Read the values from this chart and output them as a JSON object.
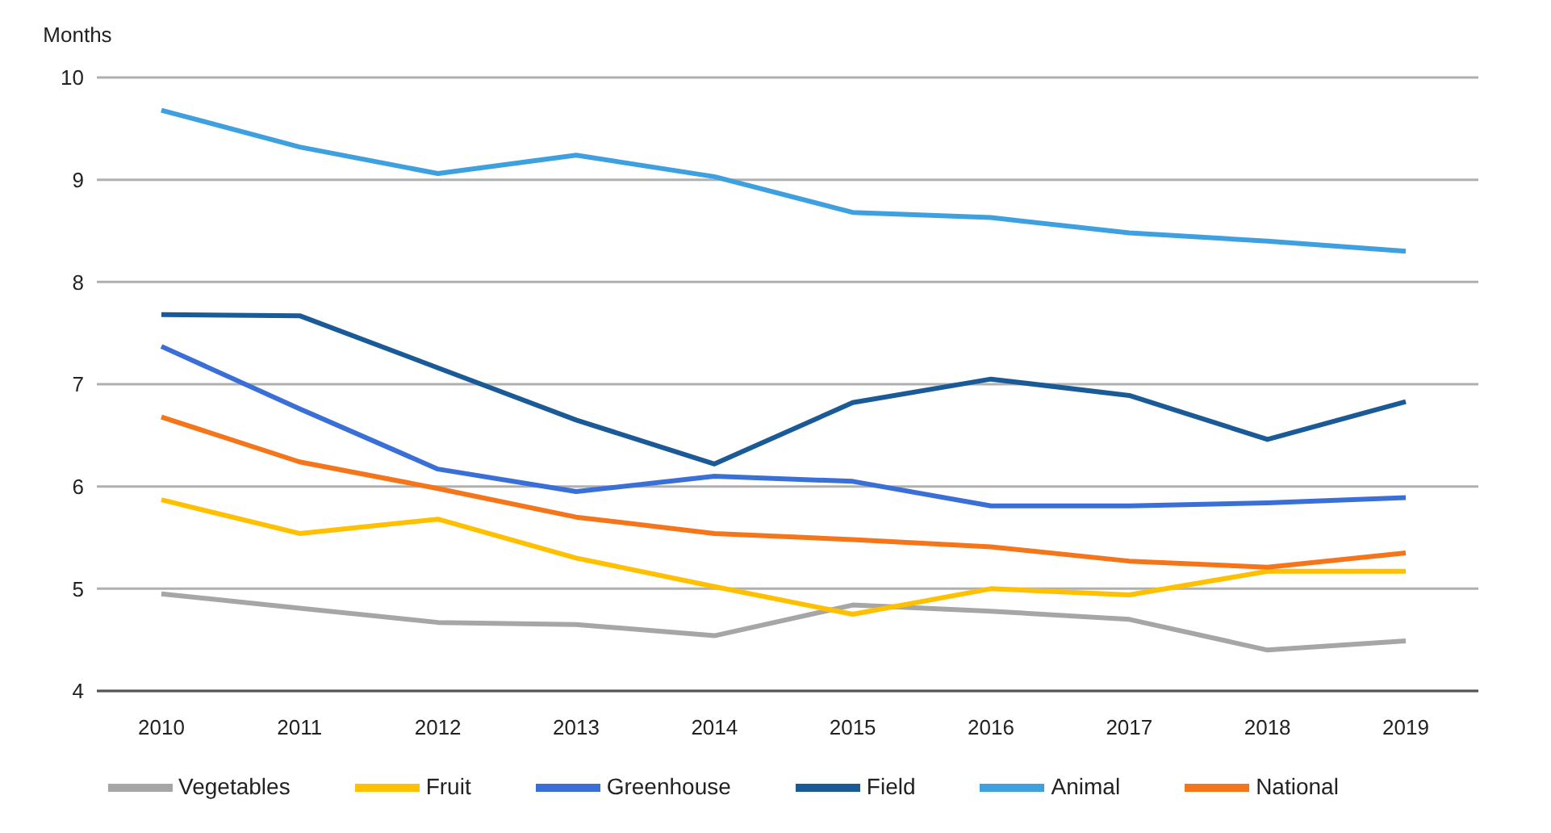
{
  "chart_data": {
    "type": "line",
    "ylabel": "Months",
    "categories": [
      "2010",
      "2011",
      "2012",
      "2013",
      "2014",
      "2015",
      "2016",
      "2017",
      "2018",
      "2019"
    ],
    "series": [
      {
        "name": "Vegetables",
        "color": "#a6a6a6",
        "values": [
          4.95,
          4.81,
          4.67,
          4.65,
          4.54,
          4.84,
          4.78,
          4.7,
          4.4,
          4.49
        ]
      },
      {
        "name": "Fruit",
        "color": "#ffc000",
        "values": [
          5.87,
          5.54,
          5.68,
          5.3,
          5.02,
          4.75,
          5.0,
          4.94,
          5.17,
          5.17
        ]
      },
      {
        "name": "Greenhouse",
        "color": "#3a6fd8",
        "values": [
          7.37,
          6.76,
          6.17,
          5.95,
          6.1,
          6.05,
          5.81,
          5.81,
          5.84,
          5.89
        ]
      },
      {
        "name": "Field",
        "color": "#1a5a96",
        "values": [
          7.68,
          7.67,
          7.16,
          6.65,
          6.22,
          6.82,
          7.05,
          6.89,
          6.46,
          6.83
        ]
      },
      {
        "name": "Animal",
        "color": "#3fa0e0",
        "values": [
          9.68,
          9.32,
          9.06,
          9.24,
          9.03,
          8.68,
          8.63,
          8.48,
          8.4,
          8.3
        ]
      },
      {
        "name": "National",
        "color": "#f5761a",
        "values": [
          6.68,
          6.24,
          5.98,
          5.7,
          5.54,
          5.48,
          5.41,
          5.27,
          5.21,
          5.35
        ]
      }
    ],
    "ylim": [
      4,
      10
    ],
    "yticks": [
      4,
      5,
      6,
      7,
      8,
      9,
      10
    ],
    "grid": "y",
    "legend": "bottom",
    "marker": "none",
    "line_style": "solid"
  }
}
